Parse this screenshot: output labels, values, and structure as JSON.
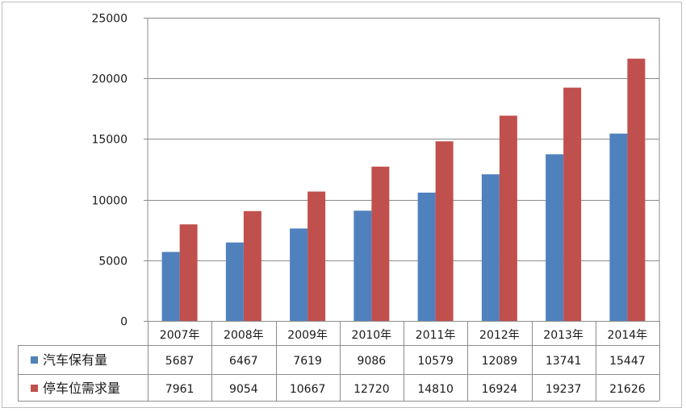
{
  "chart_data": {
    "type": "bar",
    "categories": [
      "2007年",
      "2008年",
      "2009年",
      "2010年",
      "2011年",
      "2012年",
      "2013年",
      "2014年"
    ],
    "series": [
      {
        "name": "汽车保有量",
        "color": "#4f81bd",
        "values": [
          5687,
          6467,
          7619,
          9086,
          10579,
          12089,
          13741,
          15447
        ]
      },
      {
        "name": "停车位需求量",
        "color": "#c0504d",
        "values": [
          7961,
          9054,
          10667,
          12720,
          14810,
          16924,
          19237,
          21626
        ]
      }
    ],
    "y_ticks": [
      "0",
      "5000",
      "10000",
      "15000",
      "20000",
      "25000"
    ],
    "ylim": [
      0,
      25000
    ],
    "grid": true,
    "legend": "data-table"
  }
}
